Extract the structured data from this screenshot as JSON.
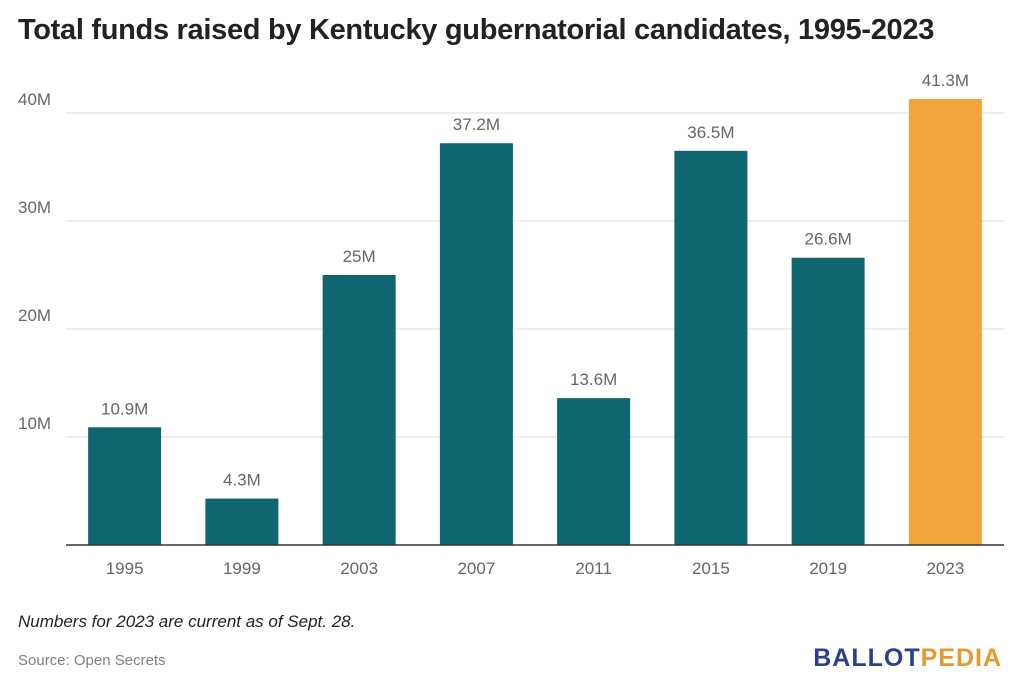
{
  "title": "Total funds raised by Kentucky gubernatorial candidates, 1995-2023",
  "footnote": "Numbers for 2023 are current as of Sept. 28.",
  "source": "Source: Open Secrets",
  "logo": {
    "part1": "BALLOT",
    "part2": "PEDIA"
  },
  "colors": {
    "bar": "#0f6670",
    "highlight": "#f0a43a",
    "grid": "#dddddd",
    "axis": "#333333"
  },
  "chart_data": {
    "type": "bar",
    "title": "Total funds raised by Kentucky gubernatorial candidates, 1995-2023",
    "xlabel": "",
    "ylabel": "",
    "categories": [
      "1995",
      "1999",
      "2003",
      "2007",
      "2011",
      "2015",
      "2019",
      "2023"
    ],
    "values": [
      10.9,
      4.3,
      25,
      37.2,
      13.6,
      36.5,
      26.6,
      41.3
    ],
    "data_labels": [
      "10.9M",
      "4.3M",
      "25M",
      "37.2M",
      "13.6M",
      "36.5M",
      "26.6M",
      "41.3M"
    ],
    "highlight_category": "2023",
    "ylim": [
      0,
      40
    ],
    "yticks": [
      10,
      20,
      30,
      40
    ],
    "ytick_labels": [
      "10M",
      "20M",
      "30M",
      "40M"
    ],
    "grid": true,
    "legend": "none"
  }
}
